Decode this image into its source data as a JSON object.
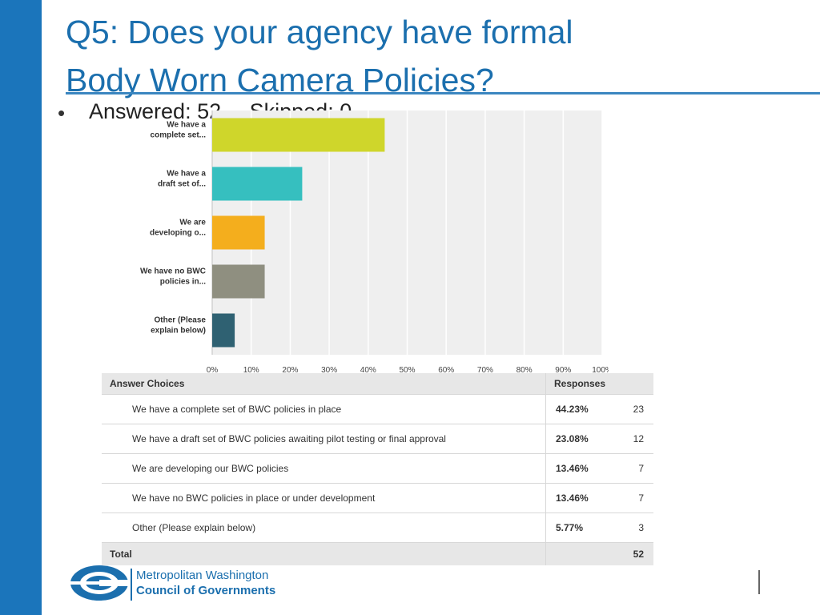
{
  "title_line1": "Q5: Does your agency have formal",
  "title_line2": "Body Worn Camera Policies?",
  "answered": "Answered: 52",
  "skipped": "Skipped: 0",
  "colors": {
    "sidebar": "#1b75bb",
    "title": "#1b6fae",
    "bars": [
      "#cfd62b",
      "#36bfbf",
      "#f4ae1d",
      "#8f8f80",
      "#2f6172"
    ]
  },
  "chart_data": {
    "type": "bar",
    "orientation": "horizontal",
    "categories": [
      "We have a complete set...",
      "We have a draft set of...",
      "We are developing o...",
      "We have no BWC policies in...",
      "Other (Please explain below)"
    ],
    "category_lines": [
      [
        "We have a",
        "complete set..."
      ],
      [
        "We have a",
        "draft set of..."
      ],
      [
        "We are",
        "developing o..."
      ],
      [
        "We have no BWC",
        "policies in..."
      ],
      [
        "Other (Please",
        "explain below)"
      ]
    ],
    "values": [
      44.23,
      23.08,
      13.46,
      13.46,
      5.77
    ],
    "xlim": [
      0,
      100
    ],
    "ticks": [
      "0%",
      "10%",
      "20%",
      "30%",
      "40%",
      "50%",
      "60%",
      "70%",
      "80%",
      "90%",
      "100%"
    ],
    "grid": true
  },
  "table": {
    "header_choice": "Answer Choices",
    "header_responses": "Responses",
    "rows": [
      {
        "label": "We have a complete set of BWC policies in place",
        "pct": "44.23%",
        "count": "23"
      },
      {
        "label": "We have a draft set of BWC policies awaiting pilot testing or final approval",
        "pct": "23.08%",
        "count": "12"
      },
      {
        "label": "We are developing our BWC policies",
        "pct": "13.46%",
        "count": "7"
      },
      {
        "label": "We have no BWC policies in place or under development",
        "pct": "13.46%",
        "count": "7"
      },
      {
        "label": "Other (Please explain below)",
        "pct": "5.77%",
        "count": "3"
      }
    ],
    "total_label": "Total",
    "total_count": "52"
  },
  "logo": {
    "line1": "Metropolitan Washington",
    "line2": "Council of Governments"
  }
}
